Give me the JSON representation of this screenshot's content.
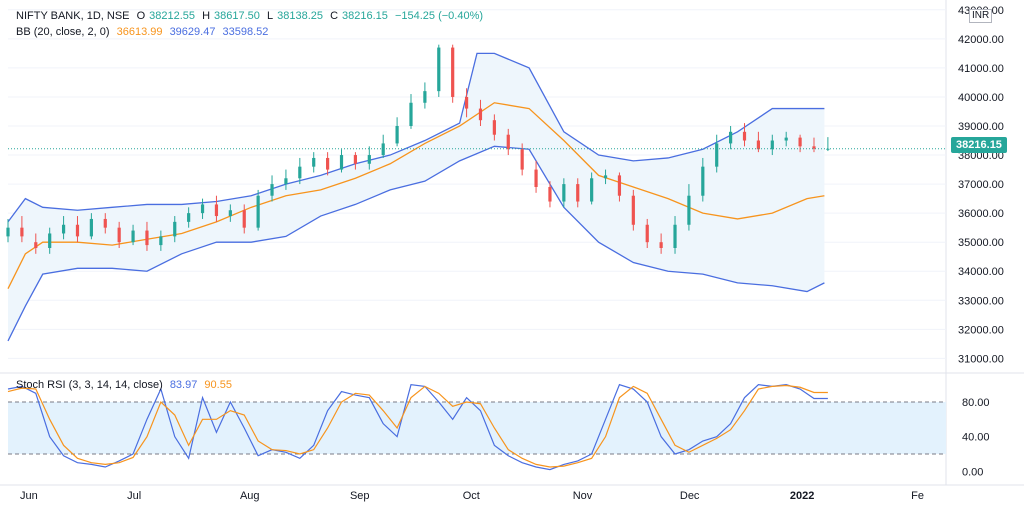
{
  "header": {
    "symbol": "NIFTY BANK, 1D, NSE",
    "open_label": "O",
    "open": "38212.55",
    "high_label": "H",
    "high": "38617.50",
    "low_label": "L",
    "low": "38138.25",
    "close_label": "C",
    "close": "38216.15",
    "change": "−154.25 (−0.40%)"
  },
  "bb_legend": {
    "label": "BB (20, close, 2, 0)",
    "middle": "36613.99",
    "upper": "39629.47",
    "lower": "33598.52"
  },
  "stoch_legend": {
    "label": "Stoch RSI (3, 3, 14, 14, close)",
    "k": "83.97",
    "d": "90.55"
  },
  "currency": "INR",
  "last_price_badge": "38216.15",
  "colors": {
    "up": "#26a69a",
    "down": "#ef5350",
    "bb_middle": "#f7941d",
    "bb_band": "#4a6ee0",
    "bb_fill": "#eef6fc",
    "stoch_k": "#4a6ee0",
    "stoch_d": "#f7941d",
    "stoch_band_fill": "#e3f2fd"
  },
  "chart_data": [
    {
      "type": "candlestick",
      "title": "NIFTY BANK, 1D, NSE",
      "ylim": [
        30600,
        43200
      ],
      "y_ticks": [
        "31000.00",
        "32000.00",
        "33000.00",
        "34000.00",
        "35000.00",
        "36000.00",
        "37000.00",
        "38000.00",
        "39000.00",
        "40000.00",
        "41000.00",
        "42000.00",
        "43000.00"
      ],
      "x_ticks": [
        "Jun",
        "Jul",
        "Aug",
        "Sep",
        "Oct",
        "Nov",
        "Dec",
        "2022",
        "Fe"
      ],
      "last_price": 38216.15,
      "series": [
        {
          "name": "BB upper",
          "x": [
            0,
            5,
            10,
            20,
            30,
            40,
            50,
            60,
            70,
            80,
            90,
            100,
            110,
            120,
            130,
            135,
            140,
            150,
            160,
            170,
            180,
            190,
            200,
            210,
            220,
            230,
            235
          ],
          "values": [
            35700,
            36500,
            36200,
            36100,
            36200,
            36300,
            36300,
            36400,
            36600,
            37000,
            37300,
            37700,
            38000,
            38500,
            39100,
            41500,
            41500,
            41000,
            38800,
            38000,
            37800,
            37900,
            38200,
            38800,
            39600,
            39600,
            39600
          ]
        },
        {
          "name": "BB middle",
          "x": [
            0,
            5,
            10,
            20,
            30,
            40,
            50,
            60,
            70,
            80,
            90,
            100,
            110,
            120,
            130,
            140,
            150,
            160,
            170,
            180,
            190,
            200,
            210,
            220,
            230,
            235
          ],
          "values": [
            33400,
            34600,
            35000,
            35000,
            34900,
            35100,
            35300,
            35700,
            36200,
            36600,
            36800,
            37200,
            37700,
            38400,
            39000,
            39800,
            39600,
            38500,
            37300,
            36900,
            36500,
            36000,
            35800,
            36000,
            36500,
            36600
          ]
        },
        {
          "name": "BB lower",
          "x": [
            0,
            5,
            10,
            20,
            30,
            40,
            50,
            60,
            70,
            80,
            90,
            100,
            110,
            120,
            130,
            140,
            150,
            160,
            170,
            180,
            190,
            200,
            210,
            220,
            230,
            235
          ],
          "values": [
            31600,
            32800,
            33900,
            34100,
            34100,
            34000,
            34600,
            35000,
            35000,
            35200,
            35900,
            36300,
            36800,
            37100,
            37800,
            38300,
            38200,
            36200,
            35000,
            34300,
            34000,
            33900,
            33600,
            33500,
            33300,
            33600
          ]
        },
        {
          "name": "Candles",
          "x": [
            0,
            4,
            8,
            12,
            16,
            20,
            24,
            28,
            32,
            36,
            40,
            44,
            48,
            52,
            56,
            60,
            64,
            68,
            72,
            76,
            80,
            84,
            88,
            92,
            96,
            100,
            104,
            108,
            112,
            116,
            120,
            124,
            128,
            132,
            136,
            140,
            144,
            148,
            152,
            156,
            160,
            164,
            168,
            172,
            176,
            180,
            184,
            188,
            192,
            196,
            200,
            204,
            208,
            212,
            216,
            220,
            224,
            228,
            232,
            236
          ],
          "open": [
            35200,
            35500,
            35000,
            34800,
            35300,
            35600,
            35200,
            35800,
            35500,
            35000,
            35400,
            34900,
            35200,
            35700,
            36000,
            36300,
            35900,
            36100,
            35500,
            36600,
            37000,
            37200,
            37600,
            37900,
            37500,
            38000,
            37700,
            38000,
            38400,
            39000,
            39800,
            40200,
            41700,
            40000,
            39600,
            39200,
            38700,
            38200,
            37500,
            36900,
            36400,
            37000,
            36400,
            37200,
            37300,
            36600,
            35600,
            35000,
            34800,
            35600,
            36600,
            37600,
            38400,
            38800,
            38500,
            38200,
            38500,
            38600,
            38300,
            38216
          ],
          "close": [
            35500,
            35200,
            34800,
            35300,
            35600,
            35200,
            35800,
            35500,
            35000,
            35400,
            34900,
            35200,
            35700,
            36000,
            36300,
            35900,
            36100,
            35500,
            36600,
            37000,
            37200,
            37600,
            37900,
            37500,
            38000,
            37700,
            38000,
            38400,
            39000,
            39800,
            40200,
            41700,
            40000,
            39600,
            39200,
            38700,
            38200,
            37500,
            36900,
            36400,
            37000,
            36400,
            37200,
            37300,
            36600,
            35600,
            35000,
            34800,
            35600,
            36600,
            37600,
            38400,
            38800,
            38500,
            38200,
            38500,
            38600,
            38300,
            38216,
            38216
          ],
          "high": [
            35800,
            35900,
            35300,
            35500,
            35900,
            35900,
            36000,
            36000,
            35700,
            35600,
            35700,
            35400,
            35900,
            36200,
            36500,
            36600,
            36300,
            36300,
            36800,
            37300,
            37500,
            37900,
            38100,
            38100,
            38200,
            38100,
            38300,
            38700,
            39300,
            40100,
            40500,
            41800,
            41800,
            40300,
            39900,
            39400,
            38900,
            38400,
            37800,
            37100,
            37200,
            37200,
            37400,
            37500,
            37400,
            36800,
            35800,
            35300,
            35900,
            37000,
            37900,
            38700,
            39000,
            39100,
            38800,
            38700,
            38800,
            38700,
            38600,
            38617
          ],
          "low": [
            35000,
            35000,
            34600,
            34600,
            35100,
            35000,
            35100,
            35300,
            34800,
            34900,
            34700,
            34700,
            35000,
            35500,
            35800,
            35700,
            35700,
            35300,
            35400,
            36400,
            36800,
            37000,
            37400,
            37300,
            37400,
            37500,
            37500,
            37900,
            38300,
            38900,
            39600,
            40000,
            39800,
            39300,
            39000,
            38500,
            38000,
            37300,
            36700,
            36200,
            36200,
            36200,
            36300,
            37000,
            36400,
            35400,
            34800,
            34600,
            34600,
            35400,
            36400,
            37400,
            38200,
            38300,
            38100,
            38000,
            38300,
            38100,
            38100,
            38138
          ]
        }
      ]
    },
    {
      "type": "line",
      "title": "Stoch RSI (3, 3, 14, 14, close)",
      "ylim": [
        -10,
        110
      ],
      "y_ticks": [
        "0.00",
        "40.00",
        "80.00"
      ],
      "bands": [
        20,
        80
      ],
      "x": [
        0,
        4,
        8,
        12,
        16,
        20,
        24,
        28,
        32,
        36,
        40,
        44,
        48,
        52,
        56,
        60,
        64,
        68,
        72,
        76,
        80,
        84,
        88,
        92,
        96,
        100,
        104,
        108,
        112,
        116,
        120,
        124,
        128,
        132,
        136,
        140,
        144,
        148,
        152,
        156,
        160,
        164,
        168,
        172,
        176,
        180,
        184,
        188,
        192,
        196,
        200,
        204,
        208,
        212,
        216,
        220,
        224,
        228,
        232,
        236
      ],
      "series": [
        {
          "name": "%K",
          "values": [
            95,
            98,
            90,
            40,
            18,
            10,
            8,
            5,
            12,
            20,
            60,
            95,
            40,
            15,
            85,
            45,
            80,
            50,
            18,
            25,
            22,
            15,
            30,
            70,
            92,
            88,
            85,
            55,
            40,
            100,
            98,
            80,
            60,
            85,
            70,
            30,
            18,
            10,
            5,
            2,
            8,
            12,
            20,
            60,
            100,
            95,
            80,
            40,
            20,
            25,
            35,
            40,
            55,
            85,
            100,
            98,
            100,
            95,
            84,
            84
          ],
          "values_d_note": ""
        },
        {
          "name": "%D",
          "values": [
            92,
            96,
            95,
            60,
            30,
            15,
            10,
            8,
            10,
            16,
            40,
            80,
            65,
            30,
            60,
            60,
            70,
            65,
            35,
            25,
            24,
            20,
            25,
            50,
            80,
            90,
            88,
            70,
            50,
            85,
            98,
            90,
            75,
            80,
            78,
            50,
            25,
            15,
            8,
            5,
            6,
            10,
            15,
            40,
            85,
            98,
            90,
            60,
            30,
            22,
            30,
            38,
            48,
            70,
            95,
            98,
            99,
            97,
            91,
            91
          ]
        }
      ]
    }
  ]
}
